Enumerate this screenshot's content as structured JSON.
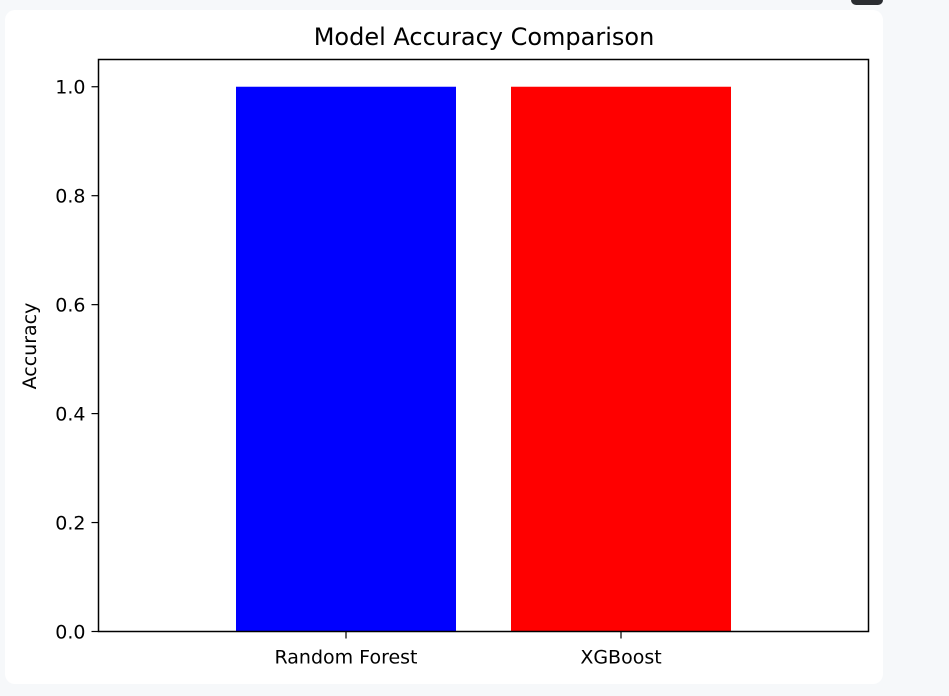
{
  "colors": {
    "page_background": "#f6f8fa",
    "card_background": "#ffffff",
    "axis": "#000000"
  },
  "chart_data": {
    "type": "bar",
    "title": "Model Accuracy Comparison",
    "xlabel": "",
    "ylabel": "Accuracy",
    "categories": [
      "Random Forest",
      "XGBoost"
    ],
    "values": [
      1.0,
      1.0
    ],
    "bar_colors": [
      "#0000ff",
      "#ff0000"
    ],
    "ylim": [
      0,
      1.05
    ],
    "yticks": [
      "0.0",
      "0.2",
      "0.4",
      "0.6",
      "0.8",
      "1.0"
    ],
    "grid": false,
    "legend": "none"
  }
}
